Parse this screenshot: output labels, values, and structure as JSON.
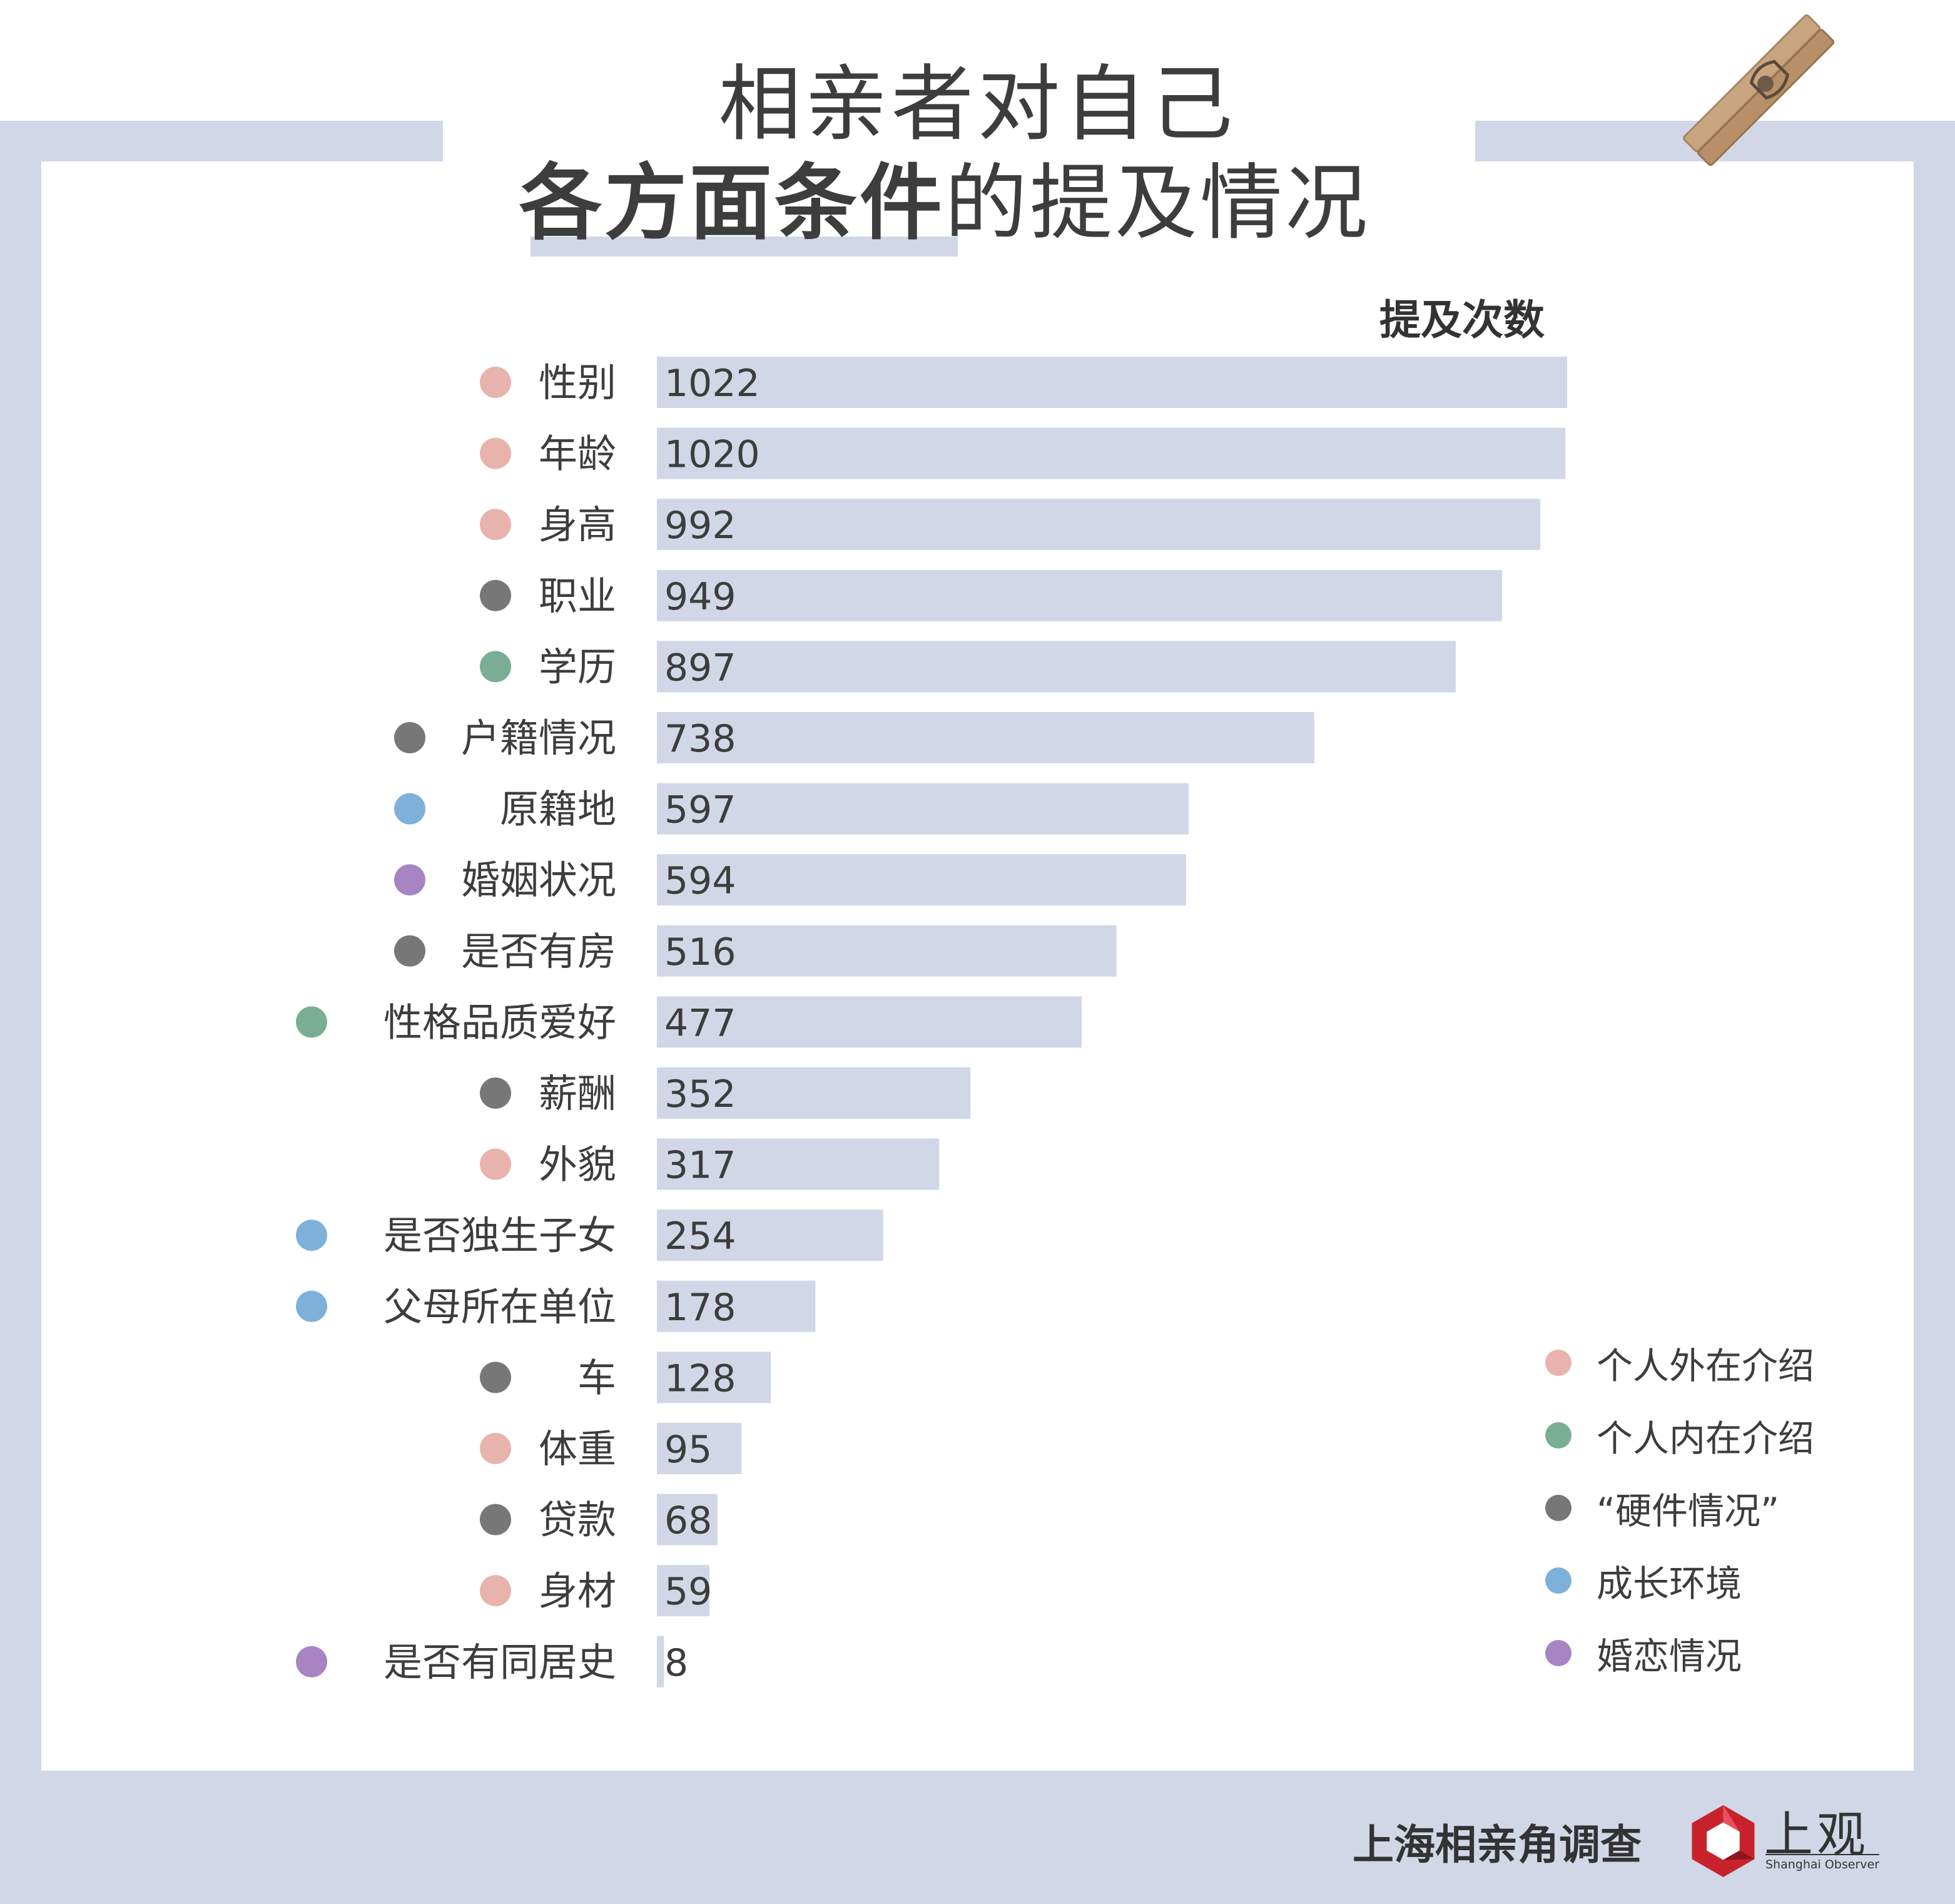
{
  "title": {
    "line1": "相亲者对自己",
    "line2_bold": "各方面条件",
    "line2_rest": "的提及情况"
  },
  "colors": {
    "external": "#e8b3ad",
    "internal": "#79ae95",
    "hardware": "#777777",
    "upbringing": "#7eb1d9",
    "romance": "#a884c2",
    "bar": "#d1d7e6",
    "frame": "#d1d7e6"
  },
  "chart_data": {
    "type": "bar",
    "orientation": "horizontal",
    "value_label": "提及次数",
    "categories": [
      "性别",
      "年龄",
      "身高",
      "职业",
      "学历",
      "户籍情况",
      "原籍地",
      "婚姻状况",
      "是否有房",
      "性格品质爱好",
      "薪酬",
      "外貌",
      "是否独生子女",
      "父母所在单位",
      "车",
      "体重",
      "贷款",
      "身材",
      "是否有同居史"
    ],
    "values": [
      1022,
      1020,
      992,
      949,
      897,
      738,
      597,
      594,
      516,
      477,
      352,
      317,
      254,
      178,
      128,
      95,
      68,
      59,
      8
    ],
    "groups": [
      "external",
      "external",
      "external",
      "hardware",
      "internal",
      "hardware",
      "upbringing",
      "romance",
      "hardware",
      "internal",
      "hardware",
      "external",
      "upbringing",
      "upbringing",
      "hardware",
      "external",
      "hardware",
      "external",
      "romance"
    ],
    "xlim": [
      0,
      1022
    ],
    "legend": [
      {
        "key": "external",
        "label": "个人外在介绍"
      },
      {
        "key": "internal",
        "label": "个人内在介绍"
      },
      {
        "key": "hardware",
        "label": "“硬件情况”"
      },
      {
        "key": "upbringing",
        "label": "成长环境"
      },
      {
        "key": "romance",
        "label": "婚恋情况"
      }
    ],
    "legend_position": "bottom-right"
  },
  "footer": {
    "title": "上海相亲角调查",
    "logo_text": "上观",
    "logo_sub": "Shanghai Observer"
  }
}
